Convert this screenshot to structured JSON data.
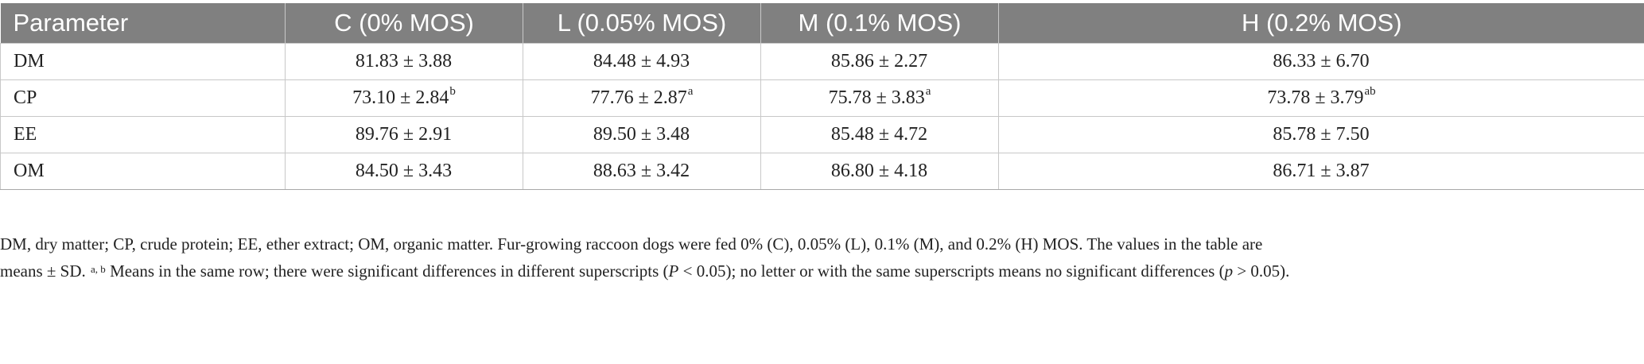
{
  "table": {
    "headers": [
      "Parameter",
      "C (0% MOS)",
      "L (0.05% MOS)",
      "M (0.1% MOS)",
      "H (0.2% MOS)"
    ],
    "rows": [
      {
        "parameter": "DM",
        "cells": [
          {
            "value": "81.83 ± 3.88",
            "sup": ""
          },
          {
            "value": "84.48 ± 4.93",
            "sup": ""
          },
          {
            "value": "85.86 ± 2.27",
            "sup": ""
          },
          {
            "value": "86.33 ± 6.70",
            "sup": ""
          }
        ]
      },
      {
        "parameter": "CP",
        "cells": [
          {
            "value": "73.10 ± 2.84",
            "sup": "b"
          },
          {
            "value": "77.76 ± 2.87",
            "sup": "a"
          },
          {
            "value": "75.78 ± 3.83",
            "sup": "a"
          },
          {
            "value": "73.78 ± 3.79",
            "sup": "ab"
          }
        ]
      },
      {
        "parameter": "EE",
        "cells": [
          {
            "value": "89.76 ± 2.91",
            "sup": ""
          },
          {
            "value": "89.50 ± 3.48",
            "sup": ""
          },
          {
            "value": "85.48 ± 4.72",
            "sup": ""
          },
          {
            "value": "85.78 ± 7.50",
            "sup": ""
          }
        ]
      },
      {
        "parameter": "OM",
        "cells": [
          {
            "value": "84.50 ± 3.43",
            "sup": ""
          },
          {
            "value": "88.63 ± 3.42",
            "sup": ""
          },
          {
            "value": "86.80 ± 4.18",
            "sup": ""
          },
          {
            "value": "86.71 ± 3.87",
            "sup": ""
          }
        ]
      }
    ]
  },
  "footnote": {
    "line1": "DM, dry matter; CP, crude protein; EE, ether extract; OM, organic matter. Fur-growing raccoon dogs were fed 0% (C), 0.05% (L), 0.1% (M), and 0.2% (H) MOS. The values in the table are",
    "line2_start": "means ± SD. ",
    "line2_sup": "a, b",
    "line2_mid": " Means in the same row; there were significant differences in different superscripts (",
    "p_upper": "P",
    "line2_mid2": " < 0.05); no letter or with the same superscripts means no significant differences (",
    "p_lower": "p",
    "line2_end": " > 0.05)."
  },
  "colors": {
    "header_bg": "#808080",
    "header_text": "#ffffff",
    "grid": "#c8c8c8",
    "text": "#222222"
  }
}
